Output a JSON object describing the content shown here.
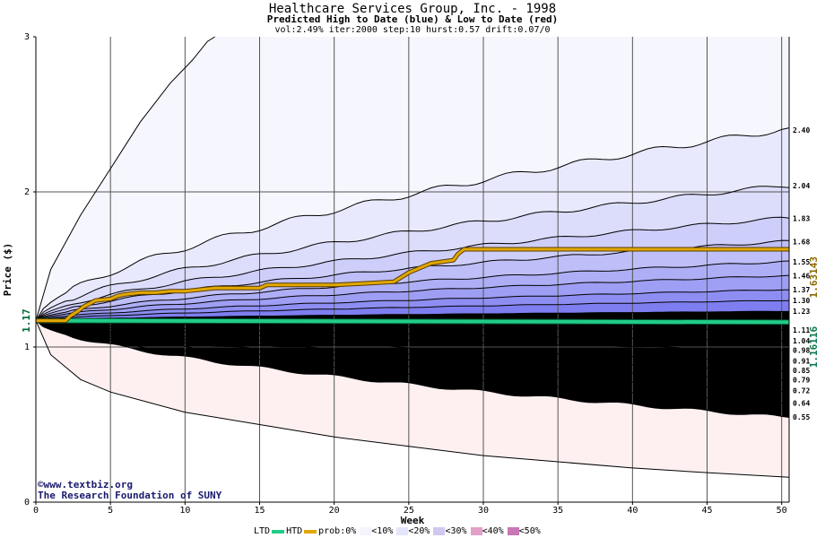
{
  "header": {
    "title": "Healthcare Services Group, Inc. - 1998",
    "subtitle": "Predicted High to Date (blue) &  Low to Date (red)",
    "params": "vol:2.49% iter:2000 step:10 hurst:0.57 drift:0.07/0"
  },
  "credits": {
    "site": "www.textbiz.org",
    "org": "The Research Foundation of SUNY"
  },
  "chart_data": {
    "type": "area",
    "xlabel": "Week",
    "ylabel": "Price ($)",
    "xlim": [
      0,
      50.5
    ],
    "ylim": [
      0,
      3
    ],
    "x_ticks": [
      0,
      5,
      10,
      15,
      20,
      25,
      30,
      35,
      40,
      45,
      50
    ],
    "y_ticks": [
      0,
      1,
      2,
      3
    ],
    "grid": true,
    "start_price": 1.17,
    "start_label": "1.17",
    "htd_final_label": "1.63143",
    "ltd_final_label": "1.16116",
    "upper_band_labels": [
      "2.40",
      "2.04",
      "1.83",
      "1.68",
      "1.55",
      "1.46",
      "1.37",
      "1.30",
      "1.23"
    ],
    "lower_band_labels": [
      "1.11",
      "1.04",
      "0.98",
      "0.91",
      "0.85",
      "0.79",
      "0.72",
      "0.64",
      "0.55"
    ],
    "upper_band_values": [
      2.4,
      2.04,
      1.83,
      1.68,
      1.55,
      1.46,
      1.37,
      1.3,
      1.23
    ],
    "lower_band_values": [
      1.11,
      1.04,
      0.98,
      0.91,
      0.85,
      0.79,
      0.72,
      0.64,
      0.55
    ],
    "outer_upper_curve": {
      "x": [
        0,
        1,
        3,
        5,
        7,
        9,
        10.5,
        11.5,
        12
      ],
      "y": [
        1.17,
        1.5,
        1.85,
        2.15,
        2.45,
        2.7,
        2.85,
        2.97,
        3.0
      ]
    },
    "outer_lower_curve": {
      "x": [
        0,
        1,
        3,
        5,
        10,
        15,
        20,
        25,
        30,
        35,
        40,
        45,
        50.5
      ],
      "y": [
        1.17,
        0.95,
        0.79,
        0.71,
        0.58,
        0.5,
        0.42,
        0.36,
        0.3,
        0.26,
        0.22,
        0.19,
        0.16
      ]
    },
    "htd_series": {
      "name": "HTD",
      "x": [
        0,
        2,
        2.3,
        2.8,
        3.2,
        3.6,
        4,
        5,
        5.5,
        6,
        7,
        8,
        9,
        10,
        11,
        12,
        15,
        15.5,
        20,
        22,
        24,
        24.5,
        25,
        25.5,
        26,
        26.5,
        28,
        28.3,
        28.7,
        35,
        40,
        45,
        50.5
      ],
      "y": [
        1.17,
        1.17,
        1.2,
        1.23,
        1.26,
        1.28,
        1.3,
        1.31,
        1.33,
        1.34,
        1.35,
        1.35,
        1.36,
        1.36,
        1.37,
        1.38,
        1.38,
        1.4,
        1.4,
        1.41,
        1.42,
        1.45,
        1.48,
        1.5,
        1.52,
        1.54,
        1.56,
        1.6,
        1.63,
        1.63,
        1.63,
        1.63,
        1.63
      ]
    },
    "ltd_series": {
      "name": "LTD",
      "x": [
        0,
        50.5
      ],
      "y": [
        1.17,
        1.16
      ]
    },
    "colors": {
      "htd": "#e0a800",
      "ltd": "#22cc88",
      "blue_bands": [
        "#f6f6fe",
        "#e9e9fd",
        "#dcdcfb",
        "#cecefa",
        "#bebef8",
        "#aeaef6",
        "#9e9ef4",
        "#8e8ef2",
        "#7e7ef0"
      ],
      "red_bands": [
        "#fef0f0",
        "#fde3e3",
        "#fcd6d6",
        "#fbc9c9",
        "#fabcbc",
        "#f9afaf",
        "#f8a0a0",
        "#f79292",
        "#f68585"
      ]
    },
    "legend": {
      "ltd": "LTD",
      "htd": "HTD",
      "prob_prefix": "prob:0%",
      "items": [
        "<10%",
        "<20%",
        "<30%",
        "<40%",
        "<50%"
      ],
      "item_colors": [
        "#f4f4fc",
        "#e4e4fb",
        "#d0c8f0",
        "#e4a0c8",
        "#c878b4",
        "#9c70e0"
      ]
    }
  }
}
